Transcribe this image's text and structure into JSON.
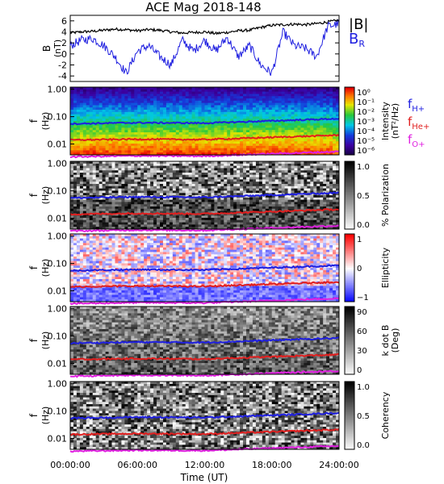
{
  "chart_data": {
    "type": "spectrogram",
    "title": "ACE Mag 2018-148",
    "xlabel": "Time (UT)",
    "x_ticks": [
      "00:00:00",
      "06:00:00",
      "12:00:00",
      "18:00:00",
      "24:00:00"
    ],
    "x_range_hours": [
      0,
      24
    ],
    "line_panel": {
      "ylabel": "B",
      "yunit": "(nT)",
      "ylim": [
        -5,
        7
      ],
      "y_ticks": [
        "6",
        "4",
        "2",
        "0",
        "-2",
        "-4"
      ],
      "series": [
        {
          "name": "|B|",
          "color": "#000000",
          "x": [
            0,
            1,
            2,
            3,
            4,
            5,
            6,
            7,
            8,
            9,
            10,
            11,
            12,
            13,
            14,
            15,
            16,
            17,
            18,
            19,
            20,
            21,
            22,
            23,
            24
          ],
          "values": [
            3.8,
            4.0,
            4.1,
            4.3,
            4.5,
            4.4,
            4.2,
            4.4,
            4.3,
            4.0,
            3.8,
            3.9,
            4.0,
            3.7,
            3.9,
            4.2,
            4.3,
            4.8,
            5.2,
            5.3,
            5.4,
            5.3,
            5.5,
            5.8,
            6.1
          ]
        },
        {
          "name": "B_R",
          "color": "#1f1fe0",
          "x": [
            0,
            1,
            2,
            3,
            4,
            5,
            6,
            7,
            8,
            9,
            10,
            11,
            12,
            13,
            14,
            15,
            16,
            17,
            18,
            19,
            20,
            21,
            22,
            23,
            24
          ],
          "values": [
            1.5,
            2.5,
            2.8,
            1.5,
            -0.5,
            -3.5,
            0.5,
            1.5,
            -0.5,
            -2.0,
            2.5,
            0.5,
            2.5,
            0.5,
            3.0,
            -0.5,
            1.5,
            -2.0,
            -3.5,
            4.0,
            1.5,
            1.0,
            -0.5,
            5.0,
            5.5
          ]
        }
      ],
      "legend": [
        {
          "text": "|B|",
          "color": "#000000"
        },
        {
          "text": "B",
          "sub": "R",
          "color": "#1f1fe0"
        }
      ]
    },
    "spectrogram_panels": [
      {
        "name": "Intensity",
        "colormap": "rainbow",
        "ylabel": "f",
        "yunit": "(Hz)",
        "y_ticks": [
          "1.00",
          "0.10",
          "0.01"
        ],
        "colorbar_ticks": [
          "10⁰",
          "10⁻¹",
          "10⁻²",
          "10⁻³",
          "10⁻⁴",
          "10⁻⁵",
          "10⁻⁶"
        ],
        "colorbar_label": [
          "Intensity",
          "(nT²/Hz)"
        ]
      },
      {
        "name": "Polarization",
        "colormap": "gray",
        "ylabel": "f",
        "yunit": "(Hz)",
        "y_ticks": [
          "1.00",
          "0.10",
          "0.01"
        ],
        "colorbar_ticks": [
          "1.0",
          "0.5",
          "0.0"
        ],
        "colorbar_label": [
          "% Polarization"
        ]
      },
      {
        "name": "Ellipticity",
        "colormap": "bwr",
        "ylabel": "f",
        "yunit": "(Hz)",
        "y_ticks": [
          "1.00",
          "0.10",
          "0.01"
        ],
        "colorbar_ticks": [
          "1",
          "0",
          "−1"
        ],
        "colorbar_label": [
          "Ellipticity"
        ]
      },
      {
        "name": "kdotB",
        "colormap": "gray",
        "ylabel": "f",
        "yunit": "(Hz)",
        "y_ticks": [
          "1.00",
          "0.10",
          "0.01"
        ],
        "colorbar_ticks": [
          "90",
          "60",
          "30",
          "0"
        ],
        "colorbar_label": [
          "k dot B",
          "(Deg)"
        ]
      },
      {
        "name": "Coherency",
        "colormap": "gray",
        "ylabel": "f",
        "yunit": "(Hz)",
        "y_ticks": [
          "1.00",
          "0.10",
          "0.01"
        ],
        "colorbar_ticks": [
          "1.0",
          "0.5",
          "0.0"
        ],
        "colorbar_label": [
          "Coherency"
        ]
      }
    ],
    "frequency_lines": [
      {
        "name": "f_H+",
        "label": "f",
        "sub": "H+",
        "color": "#1f1fe0",
        "x": [
          0,
          6,
          12,
          18,
          24
        ],
        "values_hz": [
          0.055,
          0.06,
          0.058,
          0.07,
          0.085
        ]
      },
      {
        "name": "f_He+",
        "label": "f",
        "sub": "He+",
        "color": "#e01f1f",
        "x": [
          0,
          6,
          12,
          18,
          24
        ],
        "values_hz": [
          0.014,
          0.015,
          0.0145,
          0.0175,
          0.021
        ]
      },
      {
        "name": "f_O+",
        "label": "f",
        "sub": "O+",
        "color": "#e01fe0",
        "x": [
          0,
          6,
          12,
          18,
          24
        ],
        "values_hz": [
          0.0034,
          0.0037,
          0.0036,
          0.0044,
          0.0053
        ]
      }
    ],
    "freq_range_hz": [
      0.004,
      1.2
    ]
  }
}
